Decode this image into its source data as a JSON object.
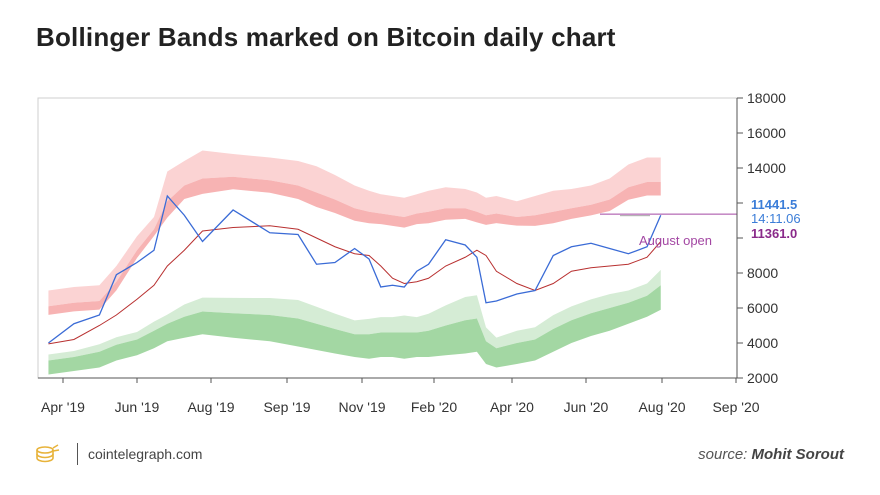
{
  "title": "Bollinger Bands marked on Bitcoin daily chart",
  "footer": {
    "site": "cointelegraph.com",
    "source_label": "source:",
    "source_name": "Mohit Sorout"
  },
  "colors": {
    "upper_band_outer": "#fbd3d3",
    "upper_band_inner": "#f7b3b3",
    "lower_band_outer": "#d5ecd5",
    "lower_band_inner": "#a3d7a3",
    "price_line": "#3a6bd6",
    "middle_line_red": "#b83030",
    "middle_line_green": "#3a9a3a",
    "august_open_line": "#a347a3",
    "price_label": "#3b7dd8",
    "open_label": "#8a2a8a",
    "axis": "#555555"
  },
  "chart_data": {
    "type": "line",
    "title": "Bollinger Bands marked on Bitcoin daily chart",
    "xlabel": "",
    "ylabel": "",
    "x_ticks": [
      "Apr '19",
      "Jun '19",
      "Aug '19",
      "Sep '19",
      "Nov '19",
      "Feb '20",
      "Apr '20",
      "Jun '20",
      "Aug '20",
      "Sep '20"
    ],
    "y_ticks": [
      2000,
      4000,
      6000,
      8000,
      10000,
      12000,
      14000,
      16000,
      18000
    ],
    "y_tick_labels": [
      "2000",
      "4000",
      "6000",
      "8000",
      "",
      "",
      "14000",
      "16000",
      "18000"
    ],
    "ylim": [
      2000,
      18000
    ],
    "grid": false,
    "x_dates": [
      "2019-03-20",
      "2019-04-10",
      "2019-05-01",
      "2019-05-15",
      "2019-06-01",
      "2019-06-15",
      "2019-06-26",
      "2019-07-10",
      "2019-07-25",
      "2019-08-10",
      "2019-08-25",
      "2019-09-10",
      "2019-09-25",
      "2019-10-10",
      "2019-10-26",
      "2019-11-10",
      "2019-11-25",
      "2019-12-10",
      "2019-12-25",
      "2020-01-10",
      "2020-01-25",
      "2020-02-10",
      "2020-02-25",
      "2020-03-05",
      "2020-03-12",
      "2020-03-20",
      "2020-04-05",
      "2020-04-20",
      "2020-05-05",
      "2020-05-20",
      "2020-06-05",
      "2020-06-20",
      "2020-07-05",
      "2020-07-20",
      "2020-07-31"
    ],
    "series": [
      {
        "name": "price",
        "values": [
          4000,
          5100,
          5600,
          7900,
          8600,
          9300,
          12400,
          11300,
          9800,
          11600,
          10300,
          10200,
          8500,
          8600,
          9400,
          8800,
          7200,
          7300,
          7200,
          8100,
          8500,
          9900,
          9600,
          8900,
          6300,
          6400,
          6800,
          7000,
          9000,
          9500,
          9700,
          9400,
          9100,
          9500,
          11300
        ]
      },
      {
        "name": "middle",
        "values": [
          3950,
          4200,
          5000,
          5600,
          6500,
          7300,
          8400,
          9300,
          10400,
          10600,
          10700,
          10500,
          10000,
          9500,
          9100,
          9000,
          8400,
          7700,
          7400,
          7500,
          7700,
          8400,
          8900,
          9300,
          9000,
          8100,
          7400,
          7000,
          7400,
          8100,
          8300,
          8400,
          8500,
          8900,
          9800
        ]
      },
      {
        "name": "upper_outer",
        "values": [
          7000,
          7200,
          7300,
          8400,
          10100,
          11200,
          13800,
          14400,
          15000,
          14800,
          14600,
          14400,
          14100,
          13600,
          13000,
          12700,
          12500,
          12400,
          12300,
          12500,
          12700,
          12900,
          12800,
          12600,
          12300,
          12400,
          12100,
          12400,
          12700,
          12800,
          13000,
          13400,
          14200,
          14600,
          14600
        ]
      },
      {
        "name": "upper_inner",
        "values": [
          6100,
          6300,
          6400,
          7500,
          9300,
          10500,
          12100,
          13000,
          13400,
          13500,
          13300,
          13000,
          12600,
          12200,
          11700,
          11500,
          11400,
          11300,
          11200,
          11400,
          11500,
          11700,
          11700,
          11500,
          11300,
          11400,
          11200,
          11300,
          11500,
          11700,
          11900,
          12200,
          12900,
          13200,
          13200
        ]
      },
      {
        "name": "lower_inner",
        "values": [
          3000,
          3200,
          3500,
          3900,
          4200,
          4700,
          5100,
          5500,
          5800,
          5700,
          5600,
          5400,
          5100,
          4800,
          4500,
          4500,
          4600,
          4600,
          4600,
          4600,
          4700,
          5000,
          5300,
          5400,
          4100,
          3700,
          4000,
          4200,
          4800,
          5300,
          5700,
          6000,
          6300,
          6700,
          7300
        ]
      },
      {
        "name": "lower_outer",
        "values": [
          2900,
          3100,
          3300,
          3700,
          4000,
          4400,
          4800,
          5000,
          5200,
          5000,
          4800,
          4500,
          4300,
          4100,
          3900,
          3800,
          3900,
          3900,
          3800,
          3900,
          3900,
          4000,
          4100,
          4200,
          3500,
          3300,
          3500,
          3700,
          4200,
          4700,
          5100,
          5400,
          5800,
          6200,
          6600
        ]
      }
    ],
    "annotations": [
      {
        "text": "11441.5",
        "value": 11441.5,
        "role": "current-price"
      },
      {
        "text": "14:11.06",
        "role": "countdown"
      },
      {
        "text": "11361.0",
        "value": 11361.0,
        "role": "august-open-value"
      },
      {
        "text": "August open",
        "value": 11361.0,
        "role": "august-open-label"
      }
    ]
  }
}
